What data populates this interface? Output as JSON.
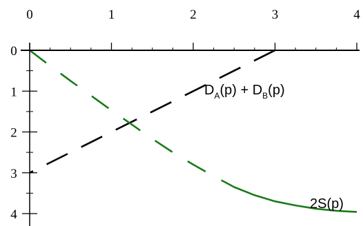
{
  "chart_data": {
    "type": "line",
    "title": "",
    "xlabel": "",
    "ylabel": "",
    "xlim": [
      0,
      4
    ],
    "ylim": [
      0,
      4
    ],
    "y_inverted": true,
    "x_axis_position": "top",
    "grid": false,
    "x_ticks": [
      {
        "value": 0,
        "label": "0"
      },
      {
        "value": 1,
        "label": "1"
      },
      {
        "value": 2,
        "label": "2"
      },
      {
        "value": 3,
        "label": "3"
      },
      {
        "value": 4,
        "label": "4"
      }
    ],
    "y_ticks": [
      {
        "value": 0,
        "label": "0"
      },
      {
        "value": 1,
        "label": "1"
      },
      {
        "value": 2,
        "label": "2"
      },
      {
        "value": 3,
        "label": "3"
      },
      {
        "value": 4,
        "label": "4"
      }
    ],
    "series": [
      {
        "name": "D_A(p) + D_B(p)",
        "label_main": "D",
        "label_sub1": "A",
        "label_mid": "(p) + D",
        "label_sub2": "B",
        "label_end": "(p)",
        "color": "#000000",
        "style": "dashed",
        "x": [
          3.0,
          2.5,
          2.0,
          1.5,
          1.0,
          0.5,
          0.0
        ],
        "y": [
          0.0,
          0.5,
          1.0,
          1.5,
          2.0,
          2.5,
          3.0
        ]
      },
      {
        "name": "2S(p)",
        "label_main": "2S(p)",
        "color": "#1a7a1a",
        "style": "dashed-then-solid",
        "x": [
          0.0,
          0.25,
          0.5,
          0.75,
          1.0,
          1.25,
          1.5,
          1.75,
          2.0,
          2.25,
          2.5,
          2.75,
          3.0,
          3.25,
          3.5,
          3.75,
          4.0
        ],
        "y": [
          0.0,
          0.38,
          0.75,
          1.11,
          1.47,
          1.82,
          2.17,
          2.5,
          2.8,
          3.08,
          3.35,
          3.55,
          3.7,
          3.8,
          3.88,
          3.93,
          3.96
        ],
        "solid_from_x": 2.5
      }
    ]
  }
}
